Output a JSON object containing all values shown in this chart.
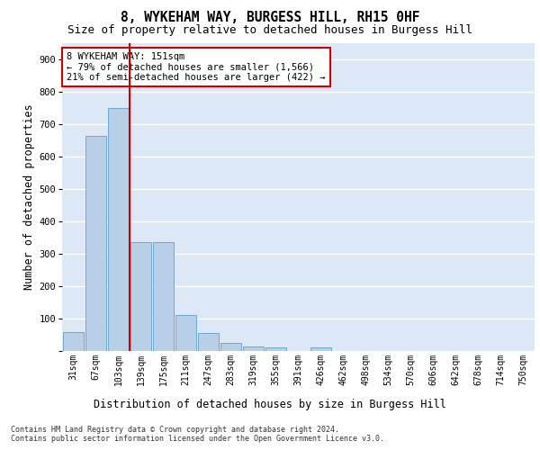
{
  "title1": "8, WYKEHAM WAY, BURGESS HILL, RH15 0HF",
  "title2": "Size of property relative to detached houses in Burgess Hill",
  "xlabel": "Distribution of detached houses by size in Burgess Hill",
  "ylabel": "Number of detached properties",
  "categories": [
    "31sqm",
    "67sqm",
    "103sqm",
    "139sqm",
    "175sqm",
    "211sqm",
    "247sqm",
    "283sqm",
    "319sqm",
    "355sqm",
    "391sqm",
    "426sqm",
    "462sqm",
    "498sqm",
    "534sqm",
    "570sqm",
    "606sqm",
    "642sqm",
    "678sqm",
    "714sqm",
    "750sqm"
  ],
  "values": [
    57,
    662,
    750,
    335,
    335,
    110,
    55,
    25,
    15,
    10,
    0,
    10,
    0,
    0,
    0,
    0,
    0,
    0,
    0,
    0,
    0
  ],
  "bar_color": "#b8cfe8",
  "bar_edgecolor": "#6fa8d0",
  "vline_color": "#cc0000",
  "vline_pos": 2.5,
  "annotation_text": "8 WYKEHAM WAY: 151sqm\n← 79% of detached houses are smaller (1,566)\n21% of semi-detached houses are larger (422) →",
  "annotation_box_facecolor": "#ffffff",
  "annotation_box_edgecolor": "#cc0000",
  "ylim": [
    0,
    950
  ],
  "yticks": [
    0,
    100,
    200,
    300,
    400,
    500,
    600,
    700,
    800,
    900
  ],
  "background_color": "#dce8f5",
  "grid_color": "#ffffff",
  "footnote": "Contains HM Land Registry data © Crown copyright and database right 2024.\nContains public sector information licensed under the Open Government Licence v3.0."
}
